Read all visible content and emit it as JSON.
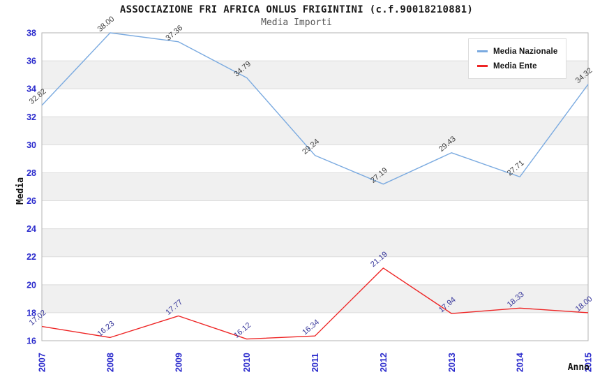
{
  "header": {
    "title": "ASSOCIAZIONE FRI AFRICA ONLUS FRIGINTINI (c.f.90018210881)",
    "subtitle": "Media Importi"
  },
  "axes": {
    "x_label": "Anno",
    "y_label": "Media"
  },
  "legend": {
    "items": [
      {
        "label": "Media Nazionale",
        "color": "#7aaae0"
      },
      {
        "label": "Media Ente",
        "color": "#ee2525"
      }
    ]
  },
  "colors": {
    "tick_label": "#2929cc",
    "band": "#f0f0f0",
    "gridline": "#dcdcdc",
    "plot_border": "#b3b3b3",
    "subtitle_text": "#555555"
  },
  "chart_data": {
    "type": "line",
    "title": "ASSOCIAZIONE FRI AFRICA ONLUS FRIGINTINI (c.f.90018210881)",
    "subtitle": "Media Importi",
    "xlabel": "Anno",
    "ylabel": "Media",
    "categories": [
      "2007",
      "2008",
      "2009",
      "2010",
      "2011",
      "2012",
      "2013",
      "2014",
      "2015"
    ],
    "series": [
      {
        "name": "Media Nazionale",
        "color": "#7aaae0",
        "label_color": "#3d3d3d",
        "values": [
          32.82,
          38.0,
          37.36,
          34.79,
          29.24,
          27.19,
          29.43,
          27.71,
          34.32
        ]
      },
      {
        "name": "Media Ente",
        "color": "#ee2525",
        "label_color": "#333399",
        "values": [
          17.02,
          16.23,
          17.77,
          16.12,
          16.34,
          21.19,
          17.94,
          18.33,
          18.0
        ]
      }
    ],
    "ylim": [
      16,
      38
    ],
    "ytick_step": 2,
    "grid": "horizontal gridlines every 2 units with alternating shaded bands",
    "legend_position": "top-right"
  }
}
